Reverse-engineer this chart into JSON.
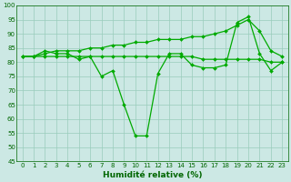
{
  "x": [
    0,
    1,
    2,
    3,
    4,
    5,
    6,
    7,
    8,
    9,
    10,
    11,
    12,
    13,
    14,
    15,
    16,
    17,
    18,
    19,
    20,
    21,
    22,
    23
  ],
  "line_zigzag": [
    82,
    82,
    84,
    83,
    83,
    81,
    82,
    75,
    77,
    65,
    54,
    54,
    76,
    83,
    83,
    79,
    78,
    78,
    79,
    94,
    96,
    83,
    77,
    80
  ],
  "line_trend": [
    82,
    82,
    83,
    84,
    84,
    84,
    85,
    85,
    86,
    86,
    87,
    87,
    88,
    88,
    88,
    89,
    89,
    90,
    91,
    93,
    95,
    91,
    84,
    82
  ],
  "line_flat": [
    82,
    82,
    82,
    82,
    82,
    82,
    82,
    82,
    82,
    82,
    82,
    82,
    82,
    82,
    82,
    82,
    81,
    81,
    81,
    81,
    81,
    81,
    80,
    80
  ],
  "bg_color": "#cce8e4",
  "grid_color": "#99ccbb",
  "line_color": "#00aa00",
  "xlabel": "Humidité relative (%)",
  "ylim": [
    45,
    100
  ],
  "xlim": [
    -0.5,
    23.5
  ],
  "yticks": [
    45,
    50,
    55,
    60,
    65,
    70,
    75,
    80,
    85,
    90,
    95,
    100
  ],
  "xticks": [
    0,
    1,
    2,
    3,
    4,
    5,
    6,
    7,
    8,
    9,
    10,
    11,
    12,
    13,
    14,
    15,
    16,
    17,
    18,
    19,
    20,
    21,
    22,
    23
  ],
  "tick_color": "#006600",
  "xlabel_fontsize": 6.5,
  "tick_fontsize": 5.0,
  "linewidth": 0.9,
  "markersize": 2.0
}
